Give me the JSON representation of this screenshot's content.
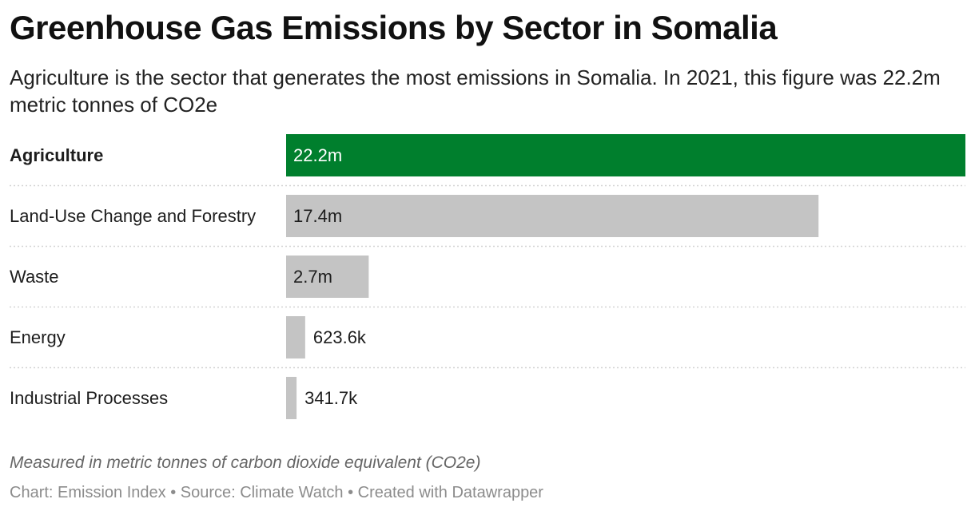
{
  "header": {
    "title": "Greenhouse Gas Emissions by Sector in Somalia",
    "subtitle": "Agriculture is the sector that generates the most emissions in Somalia. In 2021, this figure was 22.2m metric tonnes of CO2e"
  },
  "footer": {
    "notes": "Measured in metric tonnes of carbon dioxide equivalent (CO2e)",
    "credit": "Chart: Emission Index • Source: Climate Watch • Created with Datawrapper"
  },
  "colors": {
    "highlight": "#007f2d",
    "default_bar": "#c4c4c4",
    "separator": "#d4d4d4"
  },
  "chart_data": {
    "type": "bar",
    "orientation": "horizontal",
    "title": "Greenhouse Gas Emissions by Sector in Somalia",
    "categories": [
      "Agriculture",
      "Land-Use Change and Forestry",
      "Waste",
      "Energy",
      "Industrial Processes"
    ],
    "values": [
      22200000,
      17400000,
      2700000,
      623600,
      341700
    ],
    "value_labels": [
      "22.2m",
      "17.4m",
      "2.7m",
      "623.6k",
      "341.7k"
    ],
    "highlighted_category": "Agriculture",
    "xlim": [
      0,
      22200000
    ],
    "grid": false,
    "legend": "none"
  }
}
